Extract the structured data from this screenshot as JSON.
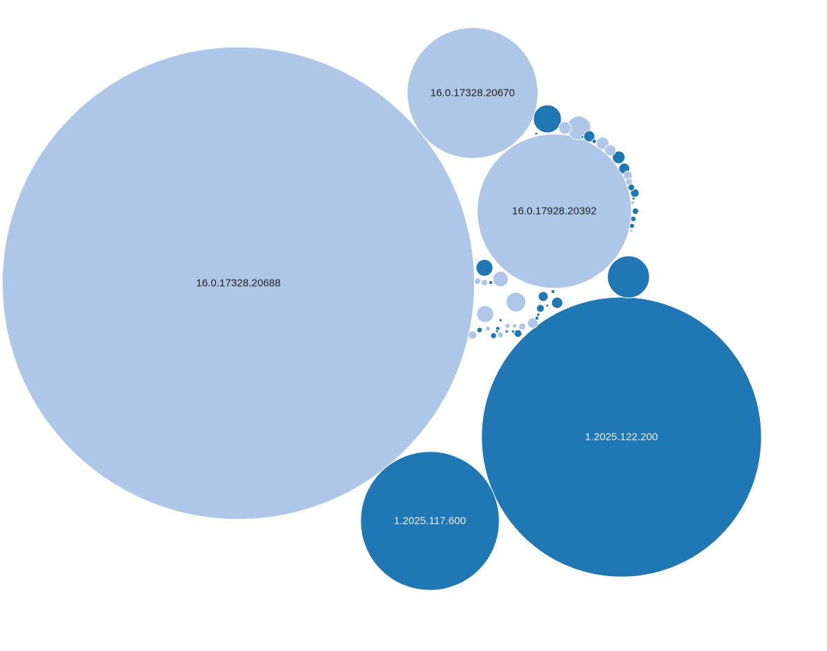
{
  "chart_data": {
    "type": "bubble",
    "colors": {
      "product_a": "#aec7e8",
      "product_b": "#1f77b4",
      "label_on_light": "#222222",
      "label_on_dark": "#e8eef6"
    },
    "items": [
      {
        "label": "16.0.17328.20688",
        "value": 45400,
        "group": "product_a"
      },
      {
        "label": "1.2025.122.200",
        "value": 15950,
        "group": "product_b"
      },
      {
        "label": "16.0.17928.20392",
        "value": 4840,
        "group": "product_a"
      },
      {
        "label": "1.2025.117.600",
        "value": 3920,
        "group": "product_b"
      },
      {
        "label": "16.0.17328.20670",
        "value": 3480,
        "group": "product_a"
      },
      {
        "label": "",
        "value": 355,
        "group": "product_b"
      },
      {
        "label": "",
        "value": 320,
        "group": "product_a"
      },
      {
        "label": "",
        "value": 151,
        "group": "product_b"
      },
      {
        "label": "",
        "value": 140,
        "group": "product_a"
      },
      {
        "label": "",
        "value": 120,
        "group": "product_a"
      },
      {
        "label": "",
        "value": 95,
        "group": "product_a"
      },
      {
        "label": "",
        "value": 55,
        "group": "product_b"
      },
      {
        "label": "",
        "value": 55,
        "group": "product_a"
      },
      {
        "label": "",
        "value": 42,
        "group": "product_a"
      },
      {
        "label": "",
        "value": 38,
        "group": "product_b"
      },
      {
        "label": "",
        "value": 36,
        "group": "product_a"
      },
      {
        "label": "",
        "value": 30,
        "group": "product_b"
      },
      {
        "label": "",
        "value": 28,
        "group": "product_b"
      },
      {
        "label": "",
        "value": 25,
        "group": "product_a"
      },
      {
        "label": "",
        "value": 24,
        "group": "product_b"
      },
      {
        "label": "",
        "value": 22,
        "group": "product_a"
      },
      {
        "label": "",
        "value": 20,
        "group": "product_b"
      },
      {
        "label": "",
        "value": 16,
        "group": "product_a"
      },
      {
        "label": "",
        "value": 15,
        "group": "product_b"
      },
      {
        "label": "",
        "value": 14,
        "group": "product_a"
      },
      {
        "label": "",
        "value": 12,
        "group": "product_b"
      },
      {
        "label": "",
        "value": 12,
        "group": "product_b"
      },
      {
        "label": "",
        "value": 10,
        "group": "product_a"
      },
      {
        "label": "",
        "value": 10,
        "group": "product_a"
      },
      {
        "label": "",
        "value": 9,
        "group": "product_b"
      },
      {
        "label": "",
        "value": 9,
        "group": "product_a"
      },
      {
        "label": "",
        "value": 8,
        "group": "product_b"
      },
      {
        "label": "",
        "value": 8,
        "group": "product_a"
      },
      {
        "label": "",
        "value": 7,
        "group": "product_b"
      },
      {
        "label": "",
        "value": 7,
        "group": "product_a"
      },
      {
        "label": "",
        "value": 6,
        "group": "product_b"
      },
      {
        "label": "",
        "value": 6,
        "group": "product_b"
      },
      {
        "label": "",
        "value": 5,
        "group": "product_a"
      },
      {
        "label": "",
        "value": 5,
        "group": "product_a"
      },
      {
        "label": "",
        "value": 5,
        "group": "product_b"
      },
      {
        "label": "",
        "value": 4,
        "group": "product_b"
      },
      {
        "label": "",
        "value": 4,
        "group": "product_b"
      },
      {
        "label": "",
        "value": 4,
        "group": "product_a"
      },
      {
        "label": "",
        "value": 3,
        "group": "product_b"
      },
      {
        "label": "",
        "value": 3,
        "group": "product_b"
      },
      {
        "label": "",
        "value": 3,
        "group": "product_b"
      },
      {
        "label": "",
        "value": 3,
        "group": "product_a"
      },
      {
        "label": "",
        "value": 2,
        "group": "product_b"
      },
      {
        "label": "",
        "value": 2,
        "group": "product_b"
      },
      {
        "label": "",
        "value": 2,
        "group": "product_b"
      },
      {
        "label": "",
        "value": 2,
        "group": "product_a"
      },
      {
        "label": "",
        "value": 2,
        "group": "product_b"
      },
      {
        "label": "",
        "value": 1,
        "group": "product_b"
      },
      {
        "label": "",
        "value": 1,
        "group": "product_b"
      },
      {
        "label": "",
        "value": 1,
        "group": "product_b"
      },
      {
        "label": "",
        "value": 1,
        "group": "product_b"
      },
      {
        "label": "",
        "value": 1,
        "group": "product_b"
      }
    ]
  }
}
